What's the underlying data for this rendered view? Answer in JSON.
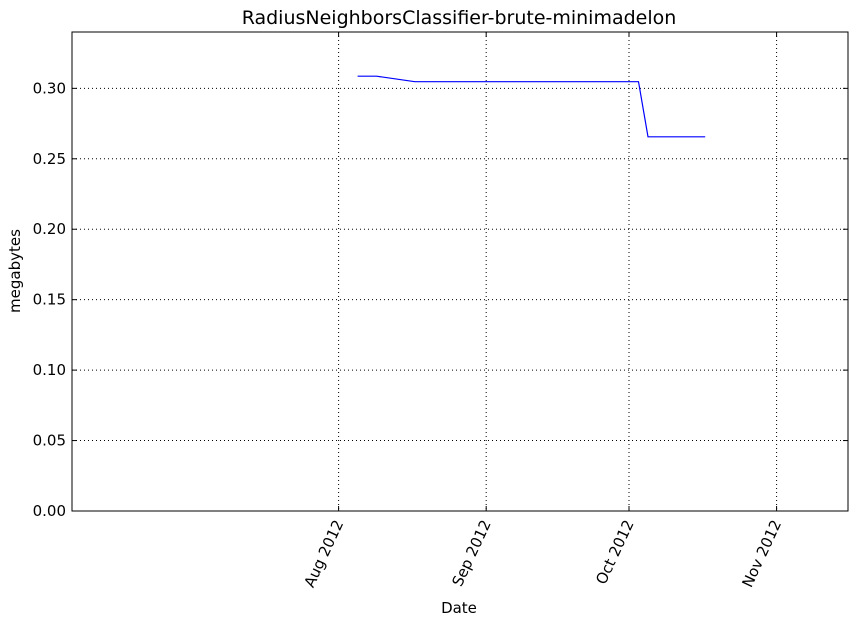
{
  "chart_data": {
    "type": "line",
    "title": "RadiusNeighborsClassifier-brute-minimadelon",
    "xlabel": "Date",
    "ylabel": "megabytes",
    "xlim": [
      "2012-06-06",
      "2012-11-16"
    ],
    "ylim": [
      0,
      0.34
    ],
    "grid": true,
    "x_ticks": [
      {
        "date": "2012-08-01",
        "label": "Aug 2012"
      },
      {
        "date": "2012-09-01",
        "label": "Sep 2012"
      },
      {
        "date": "2012-10-01",
        "label": "Oct 2012"
      },
      {
        "date": "2012-11-01",
        "label": "Nov 2012"
      }
    ],
    "y_ticks": [
      {
        "value": 0.0,
        "label": "0.00"
      },
      {
        "value": 0.05,
        "label": "0.05"
      },
      {
        "value": 0.1,
        "label": "0.10"
      },
      {
        "value": 0.15,
        "label": "0.15"
      },
      {
        "value": 0.2,
        "label": "0.20"
      },
      {
        "value": 0.25,
        "label": "0.25"
      },
      {
        "value": 0.3,
        "label": "0.30"
      }
    ],
    "series": [
      {
        "color": "#0000ff",
        "points": [
          {
            "x": "2012-08-05",
            "y": 0.3086
          },
          {
            "x": "2012-08-09",
            "y": 0.3086
          },
          {
            "x": "2012-08-17",
            "y": 0.3047
          },
          {
            "x": "2012-10-03",
            "y": 0.3047
          },
          {
            "x": "2012-10-05",
            "y": 0.2656
          },
          {
            "x": "2012-10-17",
            "y": 0.2656
          }
        ]
      }
    ]
  }
}
